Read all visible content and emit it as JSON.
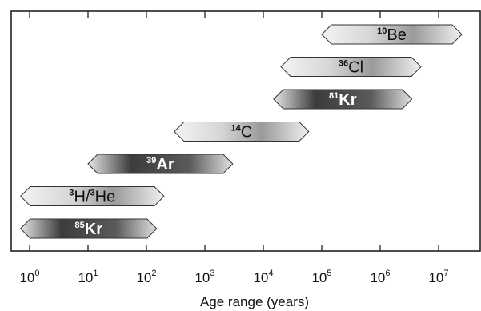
{
  "chart_data": {
    "type": "bar",
    "orientation": "horizontal-range",
    "title": "",
    "xlabel": "Age range (years)",
    "ylabel": "",
    "x_scale": "log",
    "xlim": [
      0.5,
      800000000
    ],
    "x_ticks": [
      {
        "mantissa": "10",
        "exp": "0"
      },
      {
        "mantissa": "10",
        "exp": "1"
      },
      {
        "mantissa": "10",
        "exp": "2"
      },
      {
        "mantissa": "10",
        "exp": "3"
      },
      {
        "mantissa": "10",
        "exp": "4"
      },
      {
        "mantissa": "10",
        "exp": "5"
      },
      {
        "mantissa": "10",
        "exp": "6"
      },
      {
        "mantissa": "10",
        "exp": "7"
      }
    ],
    "x_tick_values": [
      1,
      10,
      100,
      1000,
      10000,
      100000,
      1000000,
      10000000
    ],
    "grid": false,
    "series": [
      {
        "mass": "10",
        "sym": "Be",
        "start": 100000,
        "end": 25000000,
        "style": "light",
        "bold": false
      },
      {
        "mass": "36",
        "sym": "Cl",
        "start": 20000,
        "end": 5000000,
        "style": "light",
        "bold": false
      },
      {
        "mass": "81",
        "sym": "Kr",
        "start": 15000,
        "end": 3500000,
        "style": "dark",
        "bold": true
      },
      {
        "mass": "14",
        "sym": "C",
        "start": 300,
        "end": 60000,
        "style": "light",
        "bold": false
      },
      {
        "mass": "39",
        "sym": "Ar",
        "start": 10,
        "end": 3000,
        "style": "dark",
        "bold": true
      },
      {
        "mass": "3",
        "sym": "H/",
        "mass2": "3",
        "sym2": "He",
        "start": 0.7,
        "end": 200,
        "style": "light",
        "bold": false
      },
      {
        "mass": "85",
        "sym": "Kr",
        "start": 0.7,
        "end": 150,
        "style": "dark",
        "bold": true
      }
    ]
  }
}
